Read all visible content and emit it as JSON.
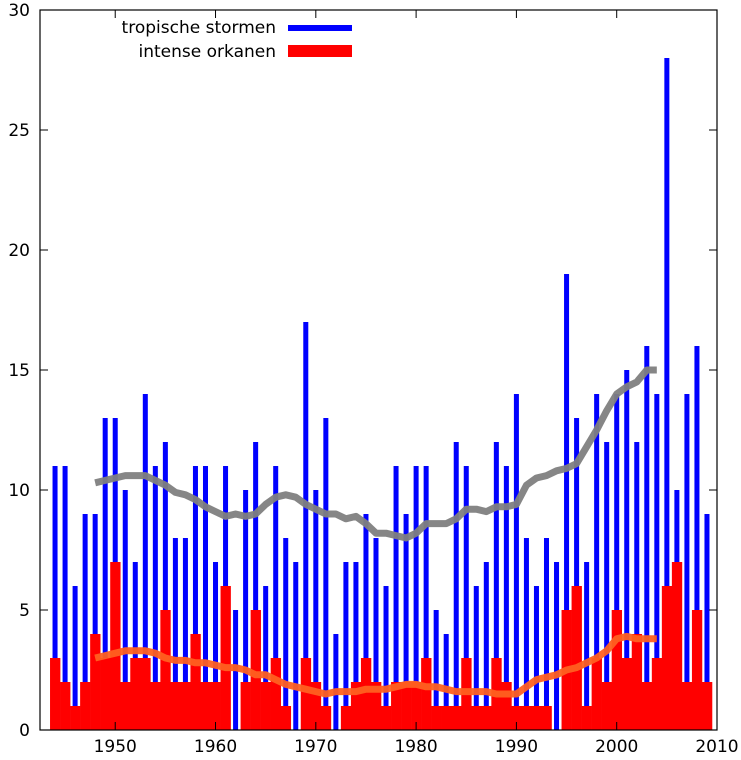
{
  "chart_data": {
    "type": "bar",
    "title": "",
    "xlabel": "",
    "ylabel": "",
    "xlim": [
      1942.5,
      2010
    ],
    "ylim": [
      0,
      30
    ],
    "x_ticks": [
      "1950",
      "1960",
      "1970",
      "1980",
      "1990",
      "2000",
      "2010"
    ],
    "y_ticks": [
      "0",
      "5",
      "10",
      "15",
      "20",
      "25",
      "30"
    ],
    "grid": false,
    "legend_position": "top-left",
    "x": [
      1944,
      1945,
      1946,
      1947,
      1948,
      1949,
      1950,
      1951,
      1952,
      1953,
      1954,
      1955,
      1956,
      1957,
      1958,
      1959,
      1960,
      1961,
      1962,
      1963,
      1964,
      1965,
      1966,
      1967,
      1968,
      1969,
      1970,
      1971,
      1972,
      1973,
      1974,
      1975,
      1976,
      1977,
      1978,
      1979,
      1980,
      1981,
      1982,
      1983,
      1984,
      1985,
      1986,
      1987,
      1988,
      1989,
      1990,
      1991,
      1992,
      1993,
      1994,
      1995,
      1996,
      1997,
      1998,
      1999,
      2000,
      2001,
      2002,
      2003,
      2004,
      2005,
      2006,
      2007,
      2008,
      2009
    ],
    "series": [
      {
        "name": "tropische stormen",
        "type": "bar",
        "color": "#0000ff",
        "values": [
          11,
          11,
          6,
          9,
          9,
          13,
          13,
          10,
          7,
          14,
          11,
          12,
          8,
          8,
          11,
          11,
          7,
          11,
          5,
          10,
          12,
          6,
          11,
          8,
          7,
          17,
          10,
          13,
          4,
          7,
          7,
          9,
          8,
          6,
          11,
          9,
          11,
          11,
          5,
          4,
          12,
          11,
          6,
          7,
          12,
          11,
          14,
          8,
          6,
          8,
          7,
          19,
          13,
          7,
          14,
          12,
          14,
          15,
          12,
          16,
          14,
          28,
          10,
          14,
          16,
          9
        ]
      },
      {
        "name": "intense orkanen",
        "type": "bar",
        "color": "#ff0000",
        "values": [
          3,
          2,
          1,
          2,
          4,
          3,
          7,
          2,
          3,
          3,
          2,
          5,
          2,
          2,
          4,
          2,
          2,
          6,
          0,
          2,
          5,
          2,
          3,
          1,
          0,
          3,
          2,
          1,
          0,
          1,
          2,
          3,
          2,
          1,
          2,
          2,
          2,
          3,
          1,
          1,
          1,
          3,
          1,
          1,
          3,
          2,
          1,
          1,
          1,
          1,
          0,
          5,
          6,
          1,
          3,
          2,
          5,
          3,
          4,
          2,
          3,
          6,
          7,
          2,
          5,
          2
        ]
      },
      {
        "name": "",
        "type": "line",
        "color": "#808080",
        "x": [
          1948,
          1949,
          1950,
          1951,
          1952,
          1953,
          1954,
          1955,
          1956,
          1957,
          1958,
          1959,
          1960,
          1961,
          1962,
          1963,
          1964,
          1965,
          1966,
          1967,
          1968,
          1969,
          1970,
          1971,
          1972,
          1973,
          1974,
          1975,
          1976,
          1977,
          1978,
          1979,
          1980,
          1981,
          1982,
          1983,
          1984,
          1985,
          1986,
          1987,
          1988,
          1989,
          1990,
          1991,
          1992,
          1993,
          1994,
          1995,
          1996,
          1997,
          1998,
          1999,
          2000,
          2001,
          2002,
          2003,
          2004
        ],
        "values": [
          10.3,
          10.4,
          10.5,
          10.6,
          10.6,
          10.6,
          10.4,
          10.2,
          9.9,
          9.8,
          9.6,
          9.3,
          9.1,
          8.9,
          9.0,
          8.9,
          9.0,
          9.4,
          9.7,
          9.8,
          9.7,
          9.4,
          9.2,
          9.0,
          9.0,
          8.8,
          8.9,
          8.6,
          8.2,
          8.2,
          8.1,
          8.0,
          8.2,
          8.6,
          8.6,
          8.6,
          8.8,
          9.2,
          9.2,
          9.1,
          9.3,
          9.3,
          9.4,
          10.2,
          10.5,
          10.6,
          10.8,
          10.9,
          11.1,
          11.8,
          12.5,
          13.3,
          14.0,
          14.3,
          14.5,
          15.0,
          15.0
        ]
      },
      {
        "name": "",
        "type": "line",
        "color": "#ff6020",
        "x": [
          1948,
          1949,
          1950,
          1951,
          1952,
          1953,
          1954,
          1955,
          1956,
          1957,
          1958,
          1959,
          1960,
          1961,
          1962,
          1963,
          1964,
          1965,
          1966,
          1967,
          1968,
          1969,
          1970,
          1971,
          1972,
          1973,
          1974,
          1975,
          1976,
          1977,
          1978,
          1979,
          1980,
          1981,
          1982,
          1983,
          1984,
          1985,
          1986,
          1987,
          1988,
          1989,
          1990,
          1991,
          1992,
          1993,
          1994,
          1995,
          1996,
          1997,
          1998,
          1999,
          2000,
          2001,
          2002,
          2003,
          2004
        ],
        "values": [
          3.0,
          3.1,
          3.2,
          3.3,
          3.3,
          3.3,
          3.2,
          3.0,
          2.9,
          2.9,
          2.8,
          2.8,
          2.7,
          2.6,
          2.6,
          2.5,
          2.3,
          2.3,
          2.1,
          1.9,
          1.8,
          1.7,
          1.6,
          1.5,
          1.6,
          1.6,
          1.6,
          1.7,
          1.7,
          1.7,
          1.8,
          1.9,
          1.9,
          1.8,
          1.8,
          1.7,
          1.6,
          1.6,
          1.6,
          1.6,
          1.5,
          1.5,
          1.5,
          1.8,
          2.1,
          2.2,
          2.3,
          2.5,
          2.6,
          2.8,
          3.0,
          3.3,
          3.8,
          3.9,
          3.8,
          3.8,
          3.8
        ]
      }
    ]
  }
}
